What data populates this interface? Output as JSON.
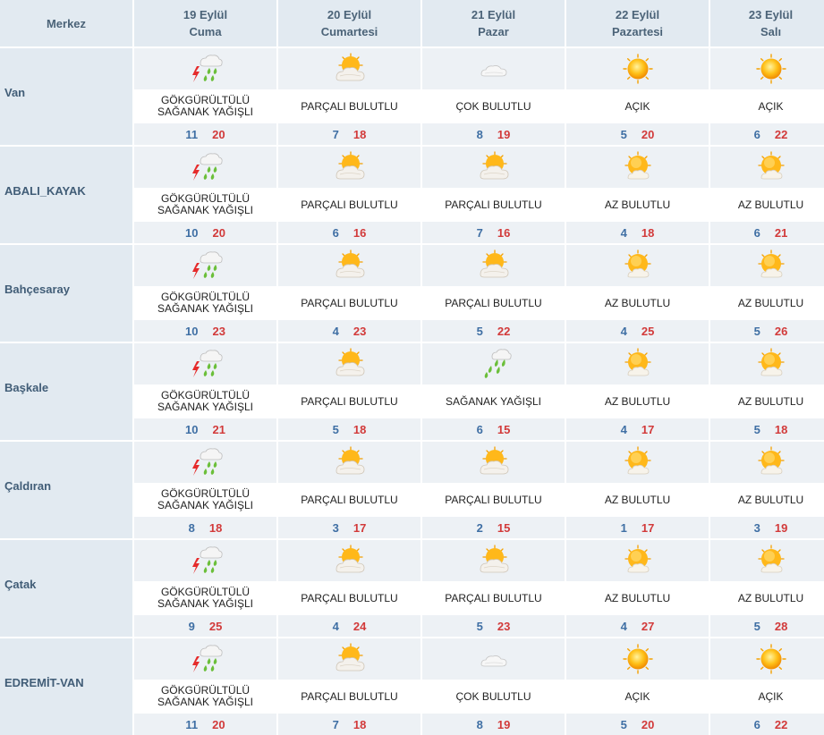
{
  "header": {
    "merkez_label": "Merkez",
    "days": [
      {
        "date": "19 Eylül",
        "weekday": "Cuma"
      },
      {
        "date": "20 Eylül",
        "weekday": "Cumartesi"
      },
      {
        "date": "21 Eylül",
        "weekday": "Pazar"
      },
      {
        "date": "22 Eylül",
        "weekday": "Pazartesi"
      },
      {
        "date": "23 Eylül",
        "weekday": "Salı"
      }
    ]
  },
  "colors": {
    "header_bg": "#e2eaf1",
    "row_bg": "#edf1f5",
    "min_temp": "#3f6fa4",
    "max_temp": "#d23a3a",
    "city_text": "#415d77"
  },
  "rows": [
    {
      "city": "Van",
      "days": [
        {
          "icon": "thunderstorm-icon",
          "line1": "GÖKGÜRÜLTÜLÜ",
          "line2": "SAĞANAK YAĞIŞLI",
          "min": "11",
          "max": "20"
        },
        {
          "icon": "partly-cloudy-icon",
          "line1": "PARÇALI BULUTLU",
          "line2": "",
          "min": "7",
          "max": "18"
        },
        {
          "icon": "cloudy-icon",
          "line1": "ÇOK BULUTLU",
          "line2": "",
          "min": "8",
          "max": "19"
        },
        {
          "icon": "sunny-icon",
          "line1": "AÇIK",
          "line2": "",
          "min": "5",
          "max": "20"
        },
        {
          "icon": "sunny-icon",
          "line1": "AÇIK",
          "line2": "",
          "min": "6",
          "max": "22"
        }
      ]
    },
    {
      "city": "ABALI_KAYAK",
      "days": [
        {
          "icon": "thunderstorm-icon",
          "line1": "GÖKGÜRÜLTÜLÜ",
          "line2": "SAĞANAK YAĞIŞLI",
          "min": "10",
          "max": "20"
        },
        {
          "icon": "partly-cloudy-icon",
          "line1": "PARÇALI BULUTLU",
          "line2": "",
          "min": "6",
          "max": "16"
        },
        {
          "icon": "partly-cloudy-icon",
          "line1": "PARÇALI BULUTLU",
          "line2": "",
          "min": "7",
          "max": "16"
        },
        {
          "icon": "mostly-sunny-icon",
          "line1": "AZ BULUTLU",
          "line2": "",
          "min": "4",
          "max": "18"
        },
        {
          "icon": "mostly-sunny-icon",
          "line1": "AZ BULUTLU",
          "line2": "",
          "min": "6",
          "max": "21"
        }
      ]
    },
    {
      "city": "Bahçesaray",
      "days": [
        {
          "icon": "thunderstorm-icon",
          "line1": "GÖKGÜRÜLTÜLÜ",
          "line2": "SAĞANAK YAĞIŞLI",
          "min": "10",
          "max": "23"
        },
        {
          "icon": "partly-cloudy-icon",
          "line1": "PARÇALI BULUTLU",
          "line2": "",
          "min": "4",
          "max": "23"
        },
        {
          "icon": "partly-cloudy-icon",
          "line1": "PARÇALI BULUTLU",
          "line2": "",
          "min": "5",
          "max": "22"
        },
        {
          "icon": "mostly-sunny-icon",
          "line1": "AZ BULUTLU",
          "line2": "",
          "min": "4",
          "max": "25"
        },
        {
          "icon": "mostly-sunny-icon",
          "line1": "AZ BULUTLU",
          "line2": "",
          "min": "5",
          "max": "26"
        }
      ]
    },
    {
      "city": "Başkale",
      "days": [
        {
          "icon": "thunderstorm-icon",
          "line1": "GÖKGÜRÜLTÜLÜ",
          "line2": "SAĞANAK YAĞIŞLI",
          "min": "10",
          "max": "21"
        },
        {
          "icon": "partly-cloudy-icon",
          "line1": "PARÇALI BULUTLU",
          "line2": "",
          "min": "5",
          "max": "18"
        },
        {
          "icon": "rain-shower-icon",
          "line1": "SAĞANAK YAĞIŞLI",
          "line2": "",
          "min": "6",
          "max": "15"
        },
        {
          "icon": "mostly-sunny-icon",
          "line1": "AZ BULUTLU",
          "line2": "",
          "min": "4",
          "max": "17"
        },
        {
          "icon": "mostly-sunny-icon",
          "line1": "AZ BULUTLU",
          "line2": "",
          "min": "5",
          "max": "18"
        }
      ]
    },
    {
      "city": "Çaldıran",
      "days": [
        {
          "icon": "thunderstorm-icon",
          "line1": "GÖKGÜRÜLTÜLÜ",
          "line2": "SAĞANAK YAĞIŞLI",
          "min": "8",
          "max": "18"
        },
        {
          "icon": "partly-cloudy-icon",
          "line1": "PARÇALI BULUTLU",
          "line2": "",
          "min": "3",
          "max": "17"
        },
        {
          "icon": "partly-cloudy-icon",
          "line1": "PARÇALI BULUTLU",
          "line2": "",
          "min": "2",
          "max": "15"
        },
        {
          "icon": "mostly-sunny-icon",
          "line1": "AZ BULUTLU",
          "line2": "",
          "min": "1",
          "max": "17"
        },
        {
          "icon": "mostly-sunny-icon",
          "line1": "AZ BULUTLU",
          "line2": "",
          "min": "3",
          "max": "19"
        }
      ]
    },
    {
      "city": "Çatak",
      "days": [
        {
          "icon": "thunderstorm-icon",
          "line1": "GÖKGÜRÜLTÜLÜ",
          "line2": "SAĞANAK YAĞIŞLI",
          "min": "9",
          "max": "25"
        },
        {
          "icon": "partly-cloudy-icon",
          "line1": "PARÇALI BULUTLU",
          "line2": "",
          "min": "4",
          "max": "24"
        },
        {
          "icon": "partly-cloudy-icon",
          "line1": "PARÇALI BULUTLU",
          "line2": "",
          "min": "5",
          "max": "23"
        },
        {
          "icon": "mostly-sunny-icon",
          "line1": "AZ BULUTLU",
          "line2": "",
          "min": "4",
          "max": "27"
        },
        {
          "icon": "mostly-sunny-icon",
          "line1": "AZ BULUTLU",
          "line2": "",
          "min": "5",
          "max": "28"
        }
      ]
    },
    {
      "city": "EDREMİT-VAN",
      "days": [
        {
          "icon": "thunderstorm-icon",
          "line1": "GÖKGÜRÜLTÜLÜ",
          "line2": "SAĞANAK YAĞIŞLI",
          "min": "11",
          "max": "20"
        },
        {
          "icon": "partly-cloudy-icon",
          "line1": "PARÇALI BULUTLU",
          "line2": "",
          "min": "7",
          "max": "18"
        },
        {
          "icon": "cloudy-icon",
          "line1": "ÇOK BULUTLU",
          "line2": "",
          "min": "8",
          "max": "19"
        },
        {
          "icon": "sunny-icon",
          "line1": "AÇIK",
          "line2": "",
          "min": "5",
          "max": "20"
        },
        {
          "icon": "sunny-icon",
          "line1": "AÇIK",
          "line2": "",
          "min": "6",
          "max": "22"
        }
      ]
    }
  ]
}
